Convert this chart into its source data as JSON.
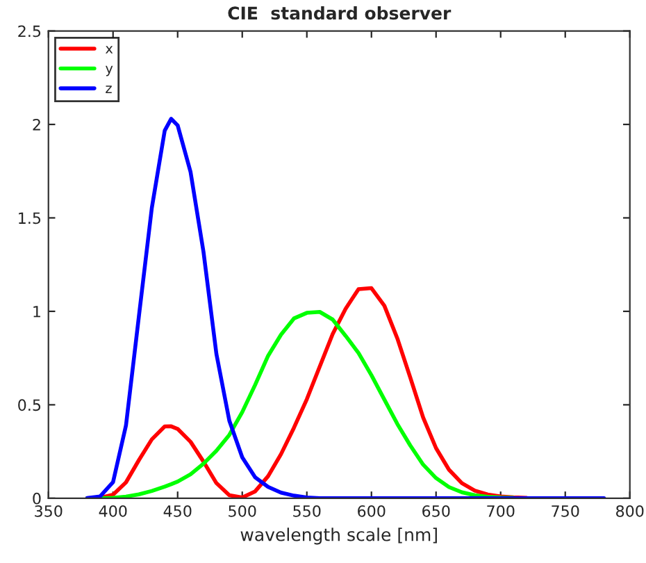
{
  "chart_data": {
    "type": "line",
    "title": "CIE  standard observer",
    "xlabel": "wavelength scale [nm]",
    "x": [
      380,
      390,
      400,
      410,
      420,
      430,
      440,
      445,
      450,
      460,
      470,
      480,
      490,
      500,
      510,
      520,
      530,
      540,
      550,
      560,
      570,
      580,
      590,
      600,
      610,
      620,
      630,
      640,
      650,
      660,
      670,
      680,
      690,
      700,
      710,
      720,
      730,
      740,
      750,
      760,
      770,
      780
    ],
    "series": [
      {
        "name": "x",
        "color": "#ff0000",
        "values": [
          0.0,
          0.002,
          0.019,
          0.085,
          0.204,
          0.315,
          0.384,
          0.385,
          0.371,
          0.302,
          0.196,
          0.081,
          0.016,
          0.004,
          0.037,
          0.118,
          0.236,
          0.377,
          0.53,
          0.705,
          0.879,
          1.014,
          1.119,
          1.124,
          1.03,
          0.856,
          0.647,
          0.432,
          0.268,
          0.153,
          0.081,
          0.041,
          0.02,
          0.01,
          0.005,
          0.002,
          null,
          null,
          null,
          null,
          null,
          null
        ]
      },
      {
        "name": "y",
        "color": "#00ff00",
        "values": [
          0.0,
          0.0,
          0.002,
          0.009,
          0.021,
          0.039,
          0.062,
          0.075,
          0.089,
          0.128,
          0.185,
          0.254,
          0.339,
          0.461,
          0.607,
          0.762,
          0.875,
          0.962,
          0.992,
          0.997,
          0.956,
          0.869,
          0.777,
          0.658,
          0.528,
          0.398,
          0.283,
          0.18,
          0.108,
          0.06,
          0.032,
          0.016,
          0.008,
          0.004,
          0.002,
          null,
          null,
          null,
          null,
          null,
          null,
          null
        ]
      },
      {
        "name": "z",
        "color": "#0000ff",
        "values": [
          0.001,
          0.01,
          0.086,
          0.389,
          0.973,
          1.553,
          1.967,
          2.03,
          1.995,
          1.745,
          1.318,
          0.772,
          0.415,
          0.219,
          0.112,
          0.061,
          0.03,
          0.014,
          0.004,
          0.0,
          0.0,
          0.0,
          0.0,
          0.0,
          0.0,
          0.0,
          0.0,
          0.0,
          0.0,
          0.0,
          0.0,
          0.0,
          0.0,
          0.0,
          0.0,
          0.0,
          0.0,
          0.0,
          0.0,
          0.0,
          0.0,
          0.0
        ]
      }
    ],
    "xlim": [
      350,
      800
    ],
    "xticks": [
      350,
      400,
      450,
      500,
      550,
      600,
      650,
      700,
      750,
      800
    ],
    "ylim": [
      0,
      2.5
    ],
    "yticks": [
      0,
      0.5,
      1,
      1.5,
      2,
      2.5
    ],
    "grid": false,
    "legend": "top left",
    "marker": "none",
    "line_style": "solid"
  }
}
